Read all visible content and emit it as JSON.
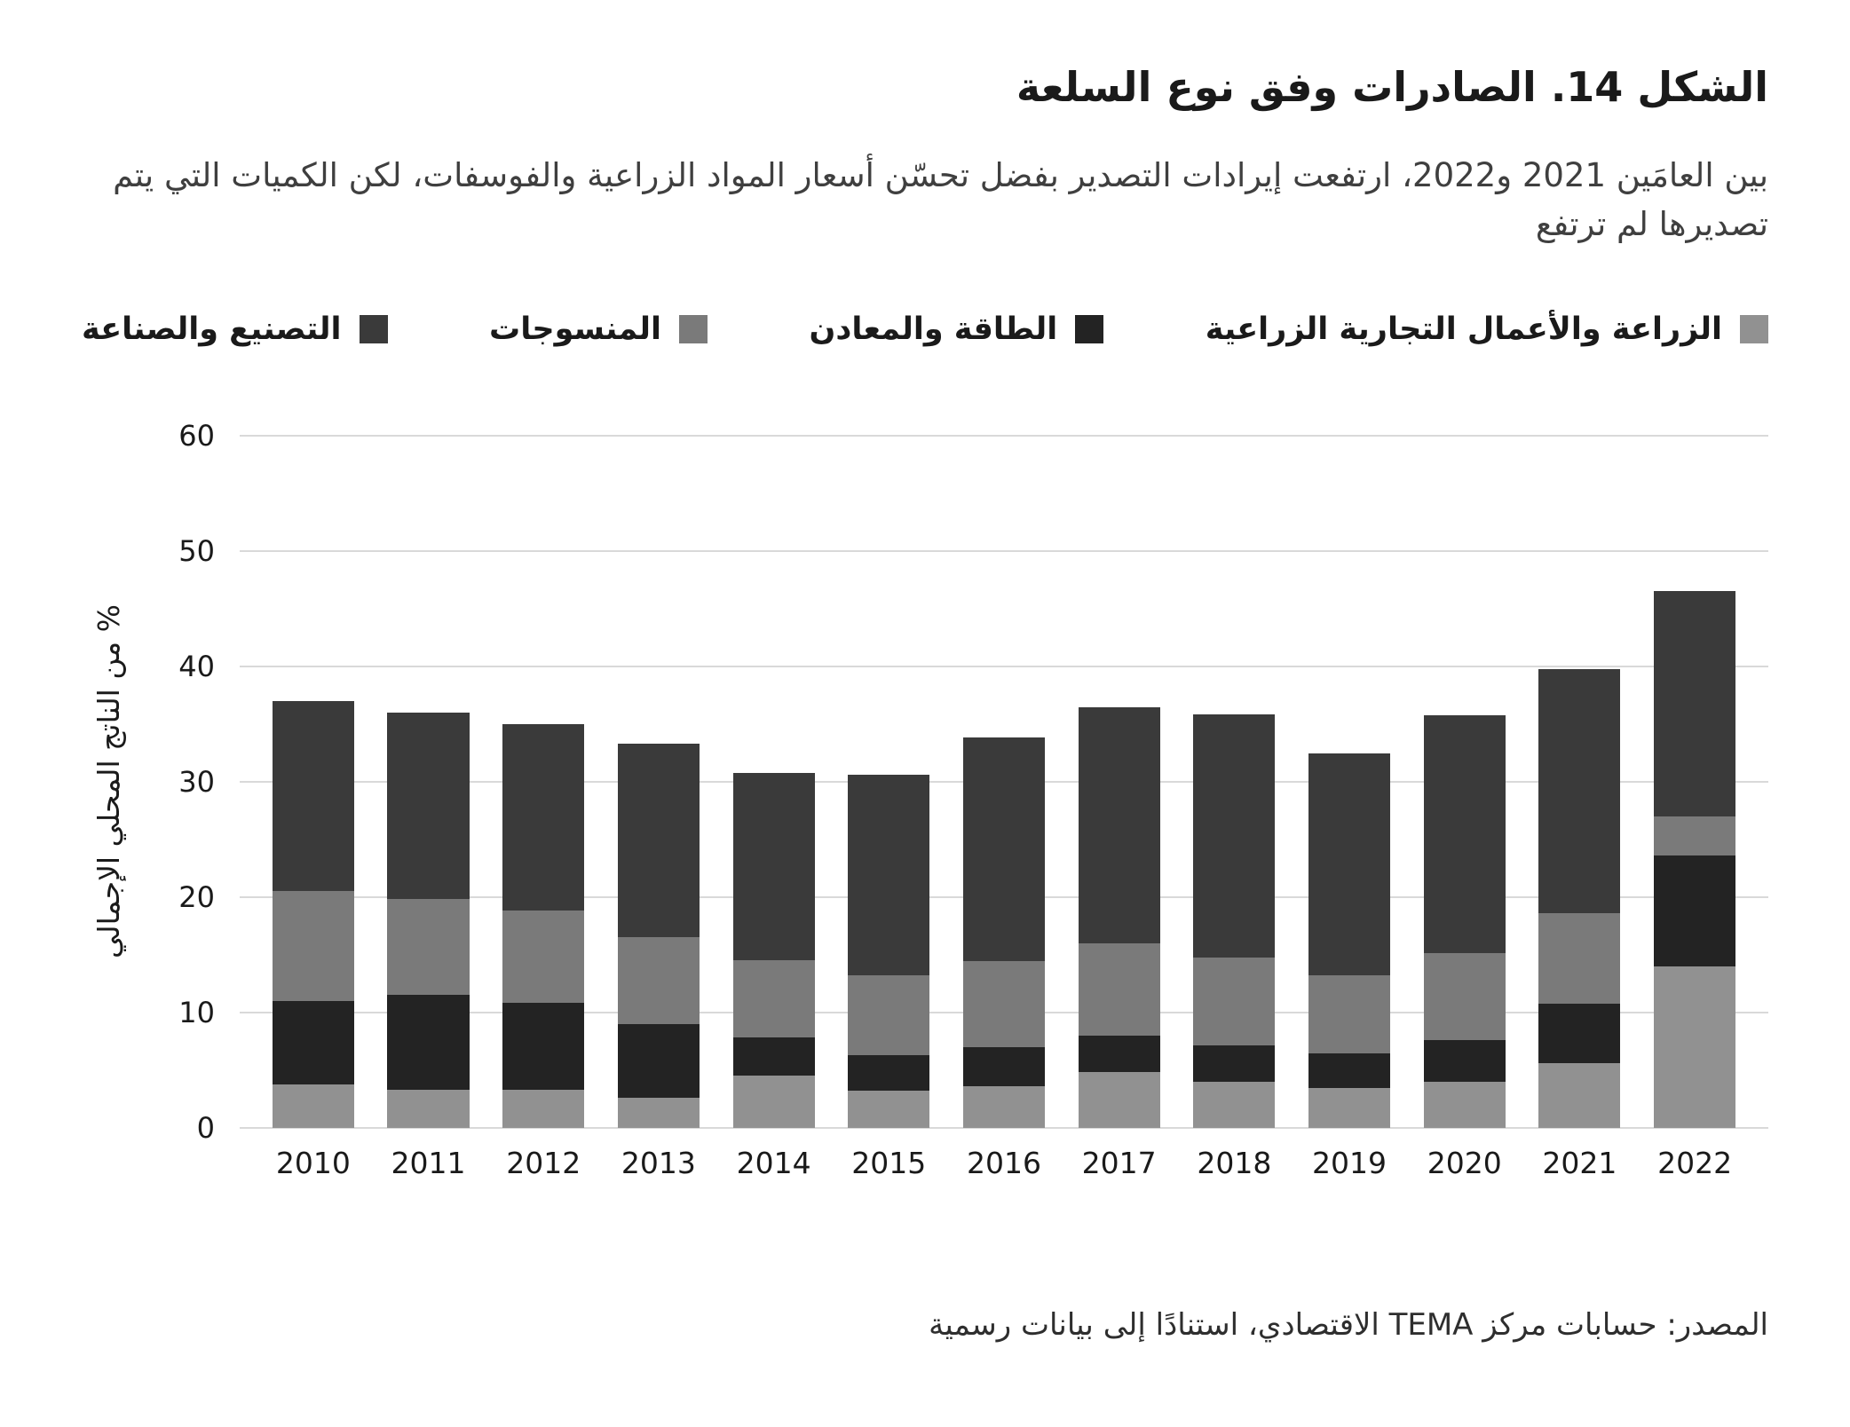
{
  "title": "الشكل 14. الصادرات وفق نوع السلعة",
  "subtitle": "بين العامَين 2021 و2022، ارتفعت إيرادات التصدير بفضل تحسّن أسعار المواد الزراعية والفوسفات، لكن الكميات التي يتم تصديرها لم ترتفع",
  "source": "المصدر: حسابات مركز TEMA الاقتصادي، استنادًا إلى بيانات رسمية",
  "chart_data": {
    "type": "bar",
    "stacked": true,
    "title": "الشكل 14. الصادرات وفق نوع السلعة",
    "ylabel": "% من الناتج المحلي الإجمالي",
    "ylim": [
      0,
      60
    ],
    "yticks": [
      0,
      10,
      20,
      30,
      40,
      50,
      60
    ],
    "grid": true,
    "legend_position": "top",
    "categories": [
      "2010",
      "2011",
      "2012",
      "2013",
      "2014",
      "2015",
      "2016",
      "2017",
      "2018",
      "2019",
      "2020",
      "2021",
      "2022"
    ],
    "series": [
      {
        "name": "الزراعة والأعمال التجارية الزراعية",
        "color": "#919191",
        "values": [
          3.7,
          3.3,
          3.3,
          2.6,
          4.5,
          3.2,
          3.6,
          4.8,
          4.0,
          3.4,
          4.0,
          5.6,
          14.0
        ]
      },
      {
        "name": "الطاقة والمعادن",
        "color": "#232323",
        "values": [
          7.3,
          8.2,
          7.5,
          6.4,
          3.3,
          3.1,
          3.4,
          3.2,
          3.1,
          3.0,
          3.6,
          5.1,
          9.6
        ]
      },
      {
        "name": "المنسوجات",
        "color": "#7a7a7a",
        "values": [
          9.5,
          8.3,
          8.0,
          7.5,
          6.7,
          6.9,
          7.4,
          8.0,
          7.6,
          6.8,
          7.5,
          7.9,
          3.4
        ]
      },
      {
        "name": "التصنيع والصناعة",
        "color": "#3a3a3a",
        "values": [
          16.5,
          16.2,
          16.2,
          16.8,
          16.2,
          17.4,
          19.4,
          20.4,
          21.1,
          19.2,
          20.6,
          21.1,
          19.5
        ]
      }
    ]
  }
}
